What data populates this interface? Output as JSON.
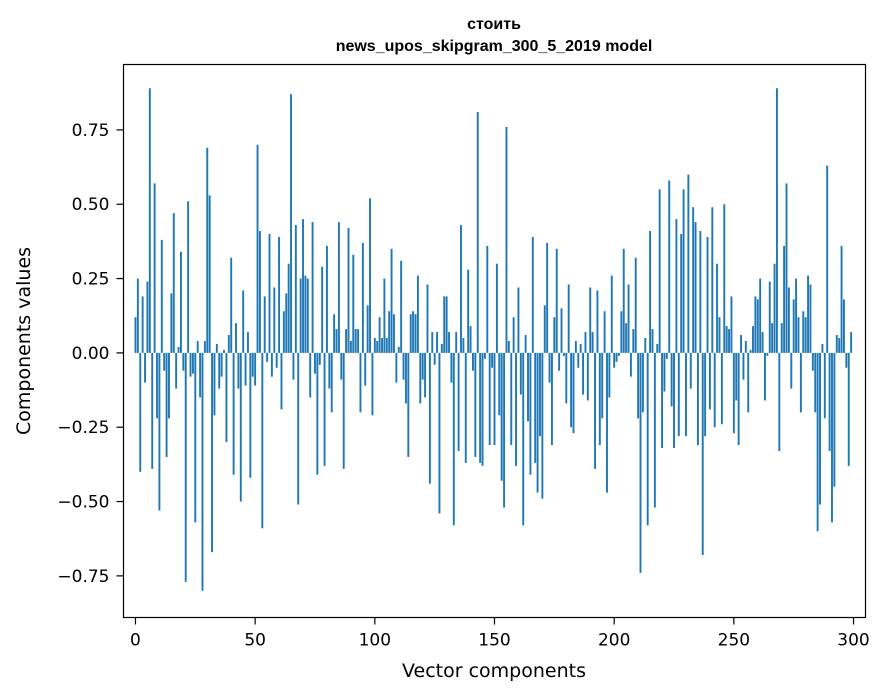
{
  "chart_data": {
    "type": "bar",
    "title_lines": [
      "стоить",
      "news_upos_skipgram_300_5_2019 model"
    ],
    "xlabel": "Vector components",
    "ylabel": "Components values",
    "xlim": [
      -5,
      305
    ],
    "ylim": [
      -0.89,
      0.97
    ],
    "xticks": [
      0,
      50,
      100,
      150,
      200,
      250,
      300
    ],
    "xtick_labels": [
      "0",
      "50",
      "100",
      "150",
      "200",
      "250",
      "300"
    ],
    "yticks": [
      -0.75,
      -0.5,
      -0.25,
      0.0,
      0.25,
      0.5,
      0.75
    ],
    "ytick_labels": [
      "−0.75",
      "−0.50",
      "−0.25",
      "0.00",
      "0.25",
      "0.50",
      "0.75"
    ],
    "bar_color": "#1f77b4",
    "grid": false,
    "values": [
      0.12,
      0.25,
      -0.4,
      0.19,
      -0.1,
      0.24,
      0.89,
      -0.39,
      0.57,
      -0.22,
      -0.53,
      0.38,
      -0.06,
      -0.35,
      -0.22,
      0.2,
      0.47,
      -0.12,
      0.02,
      0.34,
      -0.06,
      -0.77,
      0.51,
      -0.08,
      -0.07,
      -0.57,
      0.04,
      -0.15,
      -0.8,
      0.04,
      0.69,
      0.53,
      -0.67,
      -0.21,
      0.03,
      -0.12,
      -0.08,
      0.01,
      -0.3,
      0.06,
      0.32,
      -0.41,
      0.1,
      -0.12,
      -0.5,
      0.21,
      -0.11,
      0.07,
      -0.42,
      -0.08,
      -0.11,
      0.7,
      0.41,
      -0.59,
      0.19,
      -0.03,
      0.4,
      -0.08,
      0.22,
      -0.05,
      0.39,
      -0.19,
      0.14,
      0.2,
      0.3,
      0.87,
      -0.09,
      0.43,
      -0.51,
      0.25,
      0.45,
      0.26,
      0.25,
      -0.15,
      0.44,
      -0.07,
      -0.41,
      -0.04,
      0.29,
      -0.38,
      0.36,
      -0.12,
      -0.2,
      0.13,
      0.08,
      0.44,
      -0.09,
      -0.39,
      0.08,
      0.42,
      0.04,
      0.33,
      0.08,
      0.08,
      -0.2,
      0.37,
      -0.11,
      0.16,
      0.52,
      -0.21,
      0.05,
      0.04,
      0.12,
      0.05,
      0.25,
      0.05,
      0.14,
      0.35,
      0.13,
      -0.1,
      0.02,
      0.31,
      -0.09,
      -0.17,
      -0.35,
      0.13,
      0.14,
      0.13,
      0.26,
      -0.17,
      -0.09,
      -0.15,
      0.23,
      -0.44,
      0.07,
      -0.04,
      0.07,
      -0.54,
      0.03,
      0.19,
      0.19,
      0.07,
      -0.1,
      -0.58,
      0.07,
      -0.33,
      0.43,
      0.05,
      -0.37,
      0.28,
      0.09,
      -0.06,
      -0.35,
      0.81,
      -0.37,
      -0.38,
      -0.02,
      0.36,
      -0.31,
      -0.05,
      -0.31,
      0.3,
      -0.21,
      -0.43,
      -0.52,
      0.76,
      0.04,
      -0.31,
      0.12,
      -0.38,
      0.22,
      -0.14,
      -0.58,
      0.06,
      -0.23,
      -0.41,
      0.39,
      -0.37,
      -0.47,
      -0.28,
      -0.49,
      0.16,
      0.37,
      -0.1,
      -0.31,
      0.12,
      0.35,
      -0.06,
      0.15,
      -0.01,
      -0.17,
      0.23,
      -0.25,
      -0.27,
      0.04,
      -0.05,
      0.03,
      -0.14,
      0.07,
      -0.16,
      0.22,
      0.07,
      -0.39,
      0.21,
      -0.31,
      -0.22,
      0.14,
      -0.47,
      -0.15,
      0.26,
      -0.05,
      -0.03,
      -0.01,
      0.14,
      0.35,
      0.1,
      0.23,
      -0.08,
      0.08,
      0.32,
      -0.22,
      -0.74,
      -0.2,
      0.05,
      -0.58,
      0.41,
      0.08,
      -0.52,
      0.03,
      0.55,
      -0.32,
      -0.13,
      -0.02,
      0.58,
      -0.18,
      -0.32,
      0.45,
      -0.28,
      0.4,
      0.55,
      -0.28,
      0.6,
      -0.12,
      0.49,
      0.44,
      -0.31,
      0.41,
      -0.68,
      -0.28,
      0.39,
      -0.19,
      0.49,
      -0.25,
      0.3,
      0.12,
      -0.24,
      0.5,
      0.09,
      0.08,
      0.19,
      -0.27,
      -0.16,
      -0.31,
      0.06,
      -0.09,
      0.04,
      -0.2,
      0.01,
      0.09,
      0.19,
      0.18,
      0.25,
      0.07,
      -0.16,
      -0.01,
      0.24,
      0.1,
      0.3,
      0.89,
      -0.33,
      0.1,
      0.36,
      0.57,
      0.22,
      -0.12,
      0.18,
      0.25,
      0.12,
      -0.2,
      0.14,
      0.12,
      0.26,
      0.23,
      -0.06,
      -0.2,
      -0.6,
      -0.51,
      0.03,
      -0.22,
      0.63,
      -0.33,
      -0.57,
      -0.45,
      0.06,
      0.05,
      0.36,
      0.18,
      -0.05,
      -0.38,
      0.07
    ]
  }
}
